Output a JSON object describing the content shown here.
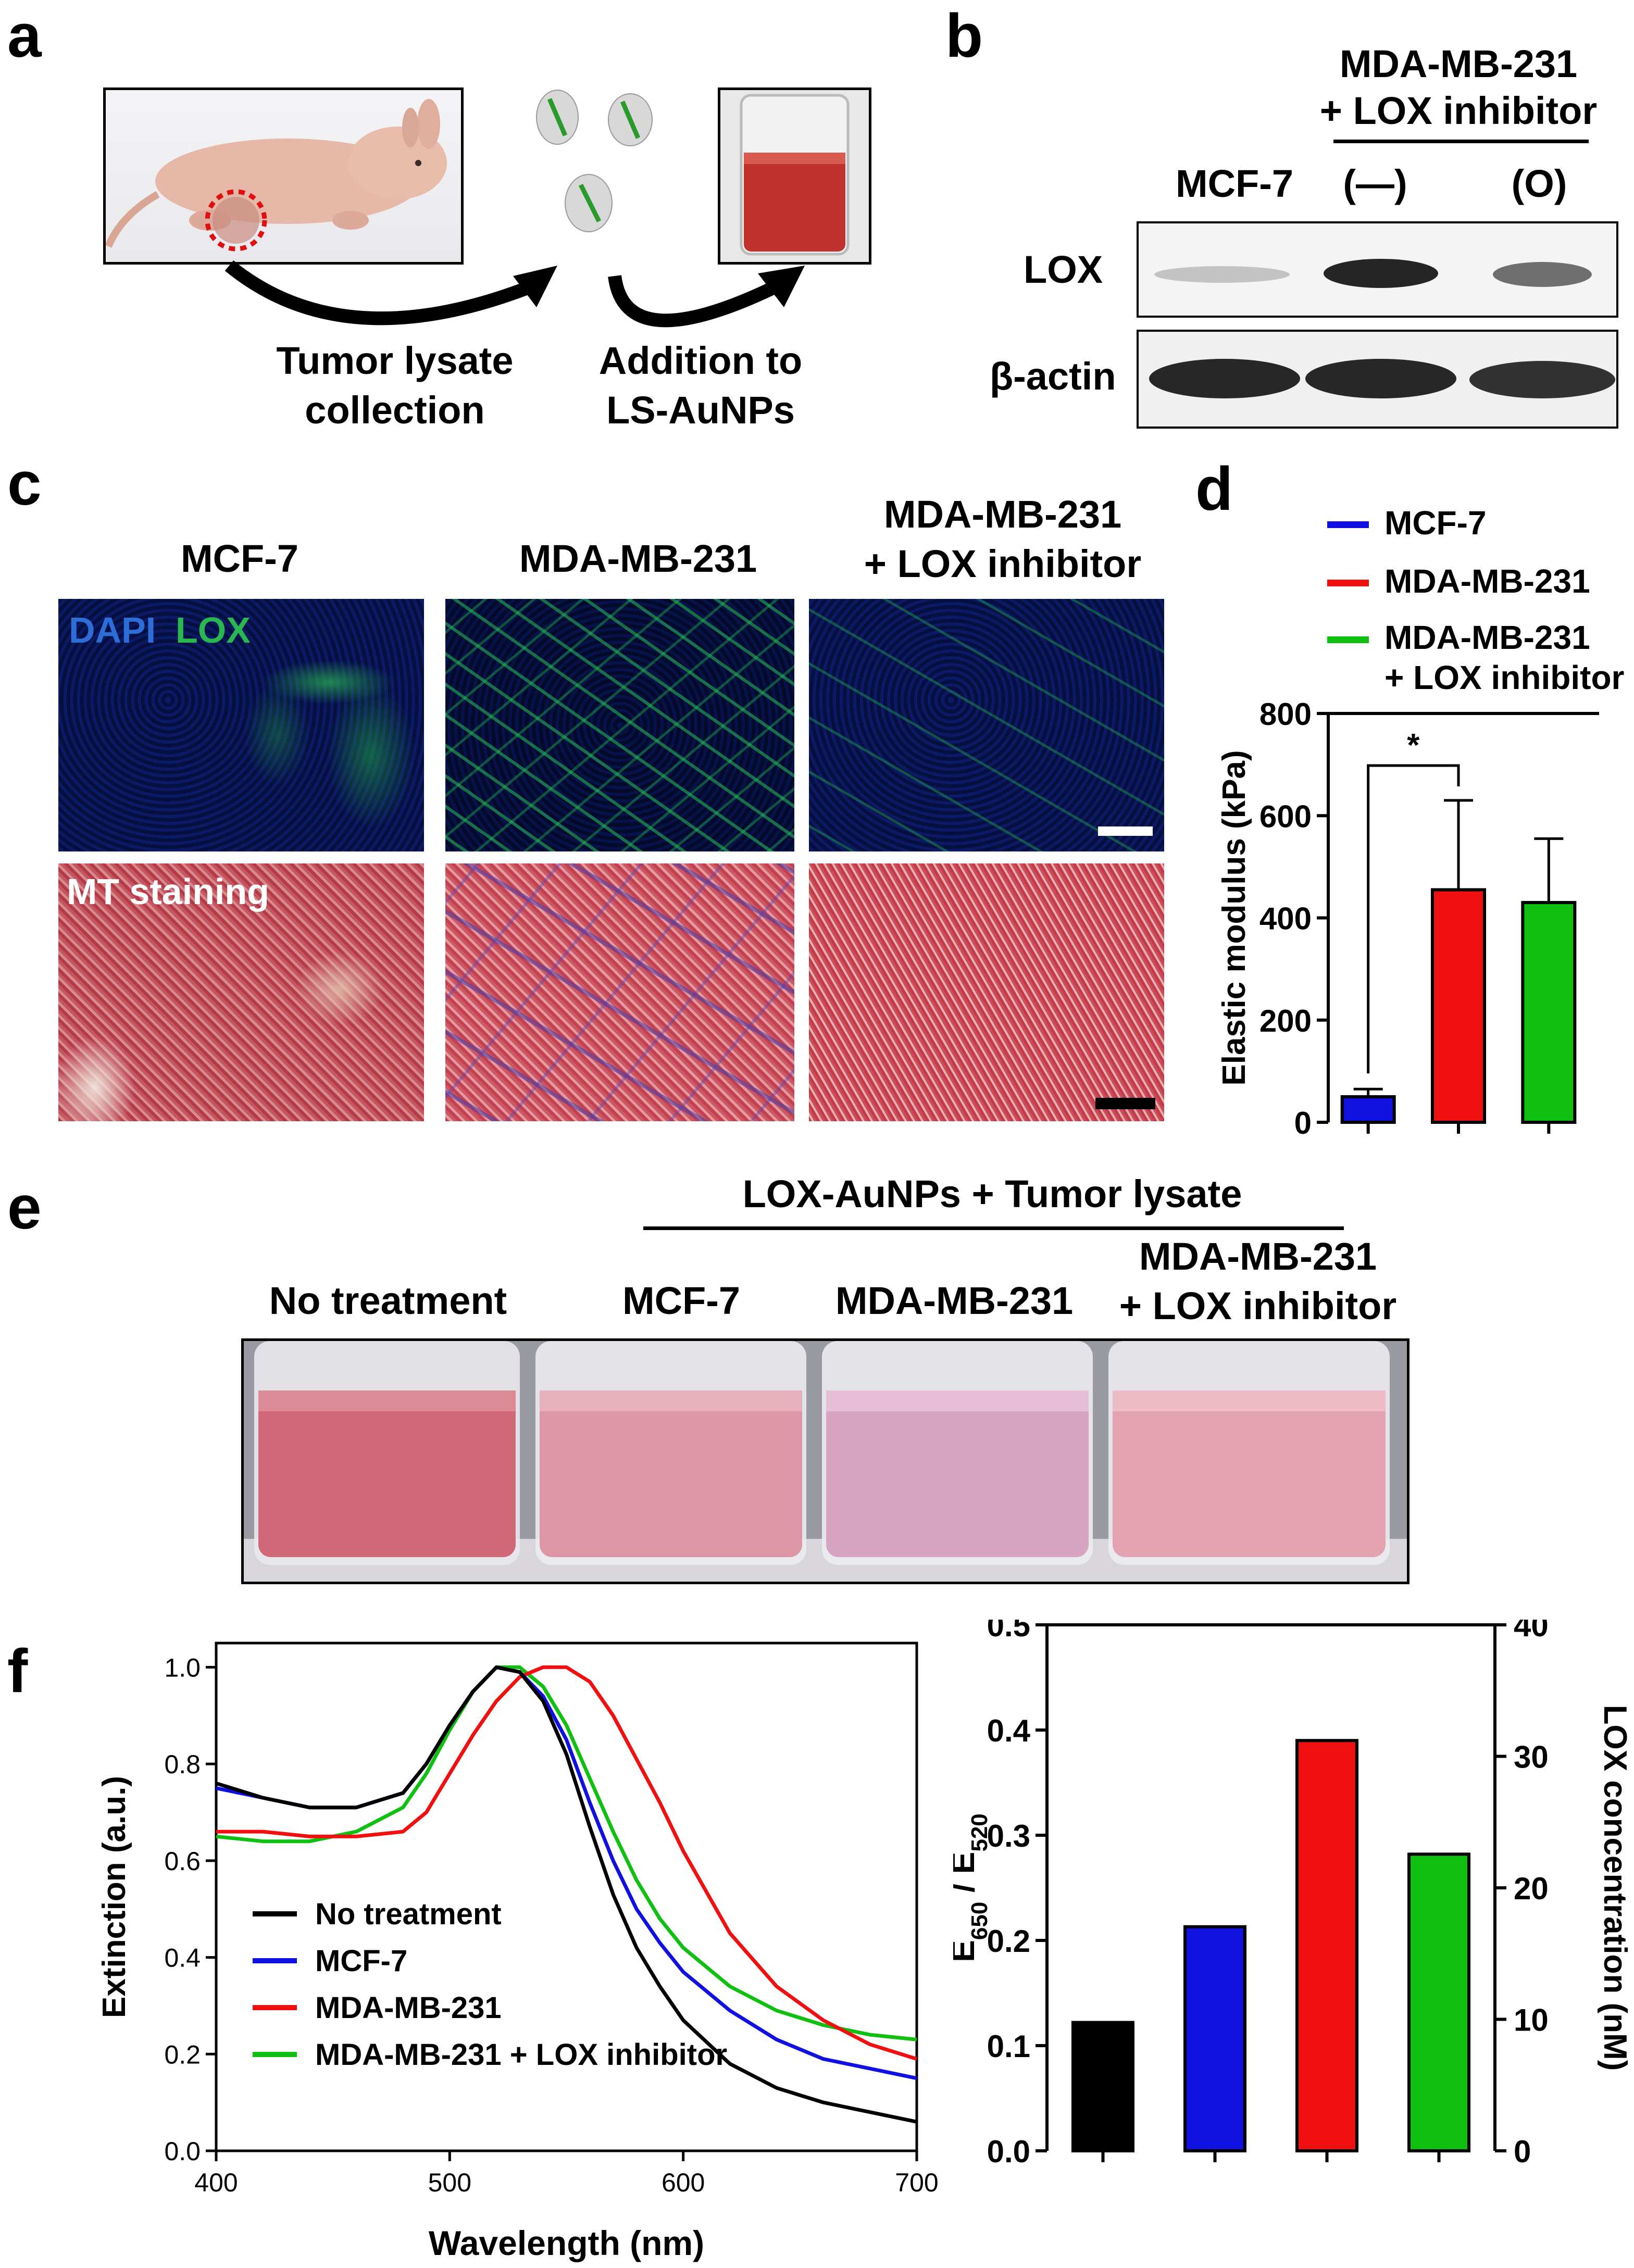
{
  "panels": {
    "a": {
      "label": "a",
      "step1": [
        "Tumor lysate",
        "collection"
      ],
      "step2": [
        "Addition to",
        "LS-AuNPs"
      ]
    },
    "b": {
      "label": "b",
      "header": [
        "MDA-MB-231",
        "+ LOX inhibitor"
      ],
      "lanes": [
        "MCF-7",
        "(—)",
        "(O)"
      ],
      "rows": [
        "LOX",
        "β-actin"
      ],
      "band_intensity": {
        "LOX": [
          0.2,
          0.85,
          0.55
        ],
        "beta_actin": [
          0.9,
          0.9,
          0.85
        ]
      }
    },
    "c": {
      "label": "c",
      "columns": [
        "MCF-7",
        "MDA-MB-231",
        "MDA-MB-231\n+ LOX inhibitor"
      ],
      "col3_lines": [
        "MDA-MB-231",
        "+ LOX inhibitor"
      ],
      "if_labels": {
        "dapi": "DAPI",
        "lox": "LOX"
      },
      "mt_label": "MT staining"
    },
    "d": {
      "label": "d",
      "legend": [
        {
          "label": "MCF-7",
          "color": "#1010e0"
        },
        {
          "label": "MDA-MB-231",
          "color": "#f01010"
        },
        {
          "label": "MDA-MB-231",
          "label2": "+ LOX inhibitor",
          "color": "#10c010"
        }
      ],
      "significance": "*"
    },
    "e": {
      "label": "e",
      "group_header": "LOX-AuNPs + Tumor lysate",
      "vials": [
        "No treatment",
        "MCF-7",
        "MDA-MB-231",
        "MDA-MB-231\n+ LOX inhibitor"
      ],
      "vial4_lines": [
        "MDA-MB-231",
        "+ LOX inhibitor"
      ]
    },
    "f": {
      "label": "f"
    }
  },
  "chart_data": [
    {
      "type": "bar",
      "panel": "d",
      "categories": [
        "MCF-7",
        "MDA-MB-231",
        "MDA-MB-231 + LOX inhibitor"
      ],
      "values": [
        50,
        455,
        430
      ],
      "errors": [
        15,
        175,
        125
      ],
      "colors": [
        "#1010e0",
        "#f01010",
        "#10c010"
      ],
      "ylabel": "Elastic modulus (kPa)",
      "ylim": [
        0,
        800
      ],
      "yticks": [
        "0",
        "200",
        "400",
        "600",
        "800"
      ]
    },
    {
      "type": "line",
      "panel": "f-left",
      "xlabel": "Wavelength (nm)",
      "ylabel": "Extinction (a.u.)",
      "xlim": [
        400,
        700
      ],
      "ylim": [
        0,
        1.05
      ],
      "xticks": [
        "400",
        "500",
        "600",
        "700"
      ],
      "yticks": [
        "0.0",
        "0.2",
        "0.4",
        "0.6",
        "0.8",
        "1.0"
      ],
      "legend_position": "bottom-left",
      "series": [
        {
          "name": "No treatment",
          "color": "#000000",
          "x": [
            400,
            420,
            440,
            460,
            480,
            490,
            500,
            510,
            520,
            530,
            540,
            550,
            560,
            570,
            580,
            590,
            600,
            620,
            640,
            660,
            680,
            700
          ],
          "y": [
            0.76,
            0.73,
            0.71,
            0.71,
            0.74,
            0.8,
            0.88,
            0.95,
            1.0,
            0.99,
            0.93,
            0.82,
            0.67,
            0.53,
            0.42,
            0.34,
            0.27,
            0.18,
            0.13,
            0.1,
            0.08,
            0.06
          ]
        },
        {
          "name": "MCF-7",
          "color": "#1010e0",
          "x": [
            400,
            420,
            440,
            460,
            480,
            490,
            500,
            510,
            520,
            530,
            540,
            550,
            560,
            570,
            580,
            590,
            600,
            620,
            640,
            660,
            680,
            700
          ],
          "y": [
            0.75,
            0.73,
            0.71,
            0.71,
            0.74,
            0.8,
            0.88,
            0.95,
            1.0,
            0.99,
            0.94,
            0.85,
            0.72,
            0.6,
            0.5,
            0.43,
            0.37,
            0.29,
            0.23,
            0.19,
            0.17,
            0.15
          ]
        },
        {
          "name": "MDA-MB-231",
          "color": "#f01010",
          "x": [
            400,
            420,
            440,
            460,
            480,
            490,
            500,
            510,
            520,
            530,
            540,
            550,
            560,
            570,
            580,
            590,
            600,
            620,
            640,
            660,
            680,
            700
          ],
          "y": [
            0.66,
            0.66,
            0.65,
            0.65,
            0.66,
            0.7,
            0.78,
            0.86,
            0.93,
            0.98,
            1.0,
            1.0,
            0.97,
            0.9,
            0.81,
            0.72,
            0.62,
            0.45,
            0.34,
            0.27,
            0.22,
            0.19
          ]
        },
        {
          "name": "MDA-MB-231 + LOX inhibitor",
          "color": "#10c010",
          "x": [
            400,
            420,
            440,
            460,
            480,
            490,
            500,
            510,
            520,
            530,
            540,
            550,
            560,
            570,
            580,
            590,
            600,
            620,
            640,
            660,
            680,
            700
          ],
          "y": [
            0.65,
            0.64,
            0.64,
            0.66,
            0.71,
            0.78,
            0.87,
            0.95,
            1.0,
            1.0,
            0.96,
            0.88,
            0.77,
            0.66,
            0.56,
            0.48,
            0.42,
            0.34,
            0.29,
            0.26,
            0.24,
            0.23
          ]
        }
      ]
    },
    {
      "type": "bar",
      "panel": "f-right",
      "categories": [
        "No treatment",
        "MCF-7",
        "MDA-MB-231",
        "MDA-MB-231 + LOX inhibitor"
      ],
      "values": [
        0.122,
        0.213,
        0.39,
        0.282
      ],
      "colors": [
        "#000000",
        "#1010e0",
        "#f01010",
        "#10c010"
      ],
      "ylabel": "E650 / E520",
      "ylabel_main": "E",
      "ylabel_sub1": "650",
      "ylabel_mid": " / E",
      "ylabel_sub2": "520",
      "ylim": [
        0,
        0.5
      ],
      "yticks": [
        "0.0",
        "0.1",
        "0.2",
        "0.3",
        "0.4",
        "0.5"
      ],
      "y2label": "LOX concentration (nM)",
      "y2lim": [
        0,
        40
      ],
      "y2ticks": [
        "0",
        "10",
        "20",
        "30",
        "40"
      ]
    }
  ]
}
